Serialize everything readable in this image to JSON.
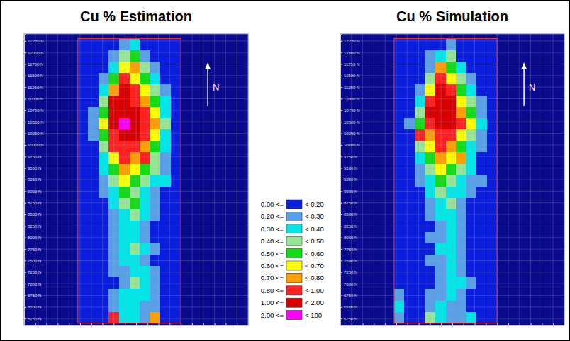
{
  "chart_data": [
    {
      "type": "heatmap",
      "title": "Cu % Estimation",
      "north_label": "N",
      "grid": true,
      "tick_labels": "y",
      "xlim": [
        3500,
        8500
      ],
      "xticks": [
        3500,
        3750,
        4000,
        4250,
        4500,
        4750,
        5000,
        5250,
        5500,
        5750,
        6000,
        6250,
        6500,
        6750,
        7000,
        7250,
        7500,
        7750,
        8000,
        8250,
        8500
      ],
      "ylim": [
        12400,
        6100
      ],
      "yticks": [
        {
          "value": 12250,
          "label": "12250 N"
        },
        {
          "value": 12000,
          "label": "12000 N"
        },
        {
          "value": 11750,
          "label": "11750 N"
        },
        {
          "value": 11500,
          "label": "11500 N"
        },
        {
          "value": 11250,
          "label": "11250 N"
        },
        {
          "value": 11000,
          "label": "11000 N"
        },
        {
          "value": 10750,
          "label": "10750 N"
        },
        {
          "value": 10500,
          "label": "10500 N"
        },
        {
          "value": 10250,
          "label": "10250 N"
        },
        {
          "value": 10000,
          "label": "10000 N"
        },
        {
          "value": 9750,
          "label": "9750 N"
        },
        {
          "value": 9500,
          "label": "9500 N"
        },
        {
          "value": 9250,
          "label": "9250 N"
        },
        {
          "value": 9000,
          "label": "9000 N"
        },
        {
          "value": 8750,
          "label": "8750 N"
        },
        {
          "value": 8500,
          "label": "8500 N"
        },
        {
          "value": 8250,
          "label": "8250 N"
        },
        {
          "value": 8000,
          "label": "8000 N"
        },
        {
          "value": 7750,
          "label": "7750 N"
        },
        {
          "value": 7500,
          "label": "7500 N"
        },
        {
          "value": 7250,
          "label": "7250 N"
        },
        {
          "value": 7000,
          "label": "7000 N"
        },
        {
          "value": 6750,
          "label": "6750 N"
        },
        {
          "value": 6500,
          "label": "6500 N"
        },
        {
          "value": 6250,
          "label": "6250 N"
        }
      ],
      "model_extent": {
        "x": [
          4700,
          7000
        ],
        "y": [
          12300,
          6150
        ]
      },
      "cell_x": [
        4815,
        5045,
        5275,
        5505,
        5735,
        5965,
        6195,
        6425,
        6655,
        6885
      ],
      "cell_y": [
        12177,
        11931,
        11685,
        11439,
        11193,
        10947,
        10701,
        10455,
        10209,
        9963,
        9717,
        9471,
        9225,
        8979,
        8733,
        8487,
        8241,
        7995,
        7749,
        7503,
        7257,
        7011,
        6765,
        6519,
        6273
      ],
      "cells": [
        [
          0.1,
          0.1,
          0.1,
          0.1,
          0.25,
          0.35,
          0.1,
          0.1,
          0.1,
          0.1
        ],
        [
          0.1,
          0.1,
          0.1,
          0.25,
          0.45,
          0.55,
          0.25,
          0.1,
          0.1,
          0.1
        ],
        [
          0.1,
          0.1,
          0.1,
          0.35,
          0.65,
          0.75,
          0.45,
          0.25,
          0.1,
          0.1
        ],
        [
          0.1,
          0.1,
          0.25,
          0.55,
          0.85,
          0.65,
          0.55,
          0.35,
          0.1,
          0.1
        ],
        [
          0.1,
          0.1,
          0.35,
          0.75,
          1.2,
          0.85,
          0.65,
          0.45,
          0.25,
          0.1
        ],
        [
          0.1,
          0.1,
          0.45,
          1.3,
          1.5,
          0.9,
          0.75,
          0.55,
          0.3,
          0.1
        ],
        [
          0.1,
          0.25,
          0.55,
          1.4,
          1.6,
          1.1,
          0.85,
          0.65,
          0.35,
          0.1
        ],
        [
          0.1,
          0.25,
          0.65,
          1.2,
          2.5,
          1.3,
          0.9,
          0.75,
          0.45,
          0.1
        ],
        [
          0.1,
          0.2,
          0.55,
          0.95,
          1.2,
          1.1,
          0.85,
          0.65,
          0.35,
          0.1
        ],
        [
          0.1,
          0.1,
          0.45,
          0.85,
          0.95,
          0.85,
          0.75,
          0.55,
          0.3,
          0.1
        ],
        [
          0.1,
          0.1,
          0.35,
          0.65,
          0.85,
          0.75,
          0.85,
          0.45,
          0.25,
          0.1
        ],
        [
          0.1,
          0.1,
          0.3,
          0.55,
          0.75,
          0.65,
          0.55,
          0.45,
          0.25,
          0.1
        ],
        [
          0.1,
          0.1,
          0.25,
          0.45,
          0.65,
          0.55,
          0.45,
          0.35,
          0.3,
          0.1
        ],
        [
          0.1,
          0.1,
          0.2,
          0.35,
          0.55,
          0.45,
          0.35,
          0.25,
          0.1,
          0.1
        ],
        [
          0.1,
          0.1,
          0.1,
          0.3,
          0.45,
          0.55,
          0.35,
          0.25,
          0.1,
          0.1
        ],
        [
          0.1,
          0.1,
          0.1,
          0.25,
          0.35,
          0.45,
          0.3,
          0.2,
          0.1,
          0.1
        ],
        [
          0.1,
          0.1,
          0.1,
          0.2,
          0.35,
          0.35,
          0.25,
          0.1,
          0.1,
          0.1
        ],
        [
          0.1,
          0.1,
          0.1,
          0.25,
          0.3,
          0.35,
          0.25,
          0.1,
          0.1,
          0.1
        ],
        [
          0.1,
          0.1,
          0.1,
          0.2,
          0.35,
          0.45,
          0.3,
          0.2,
          0.1,
          0.1
        ],
        [
          0.1,
          0.1,
          0.1,
          0.25,
          0.3,
          0.35,
          0.25,
          0.1,
          0.1,
          0.1
        ],
        [
          0.1,
          0.1,
          0.1,
          0.2,
          0.25,
          0.35,
          0.3,
          0.2,
          0.1,
          0.1
        ],
        [
          0.1,
          0.1,
          0.1,
          0.1,
          0.25,
          0.45,
          0.35,
          0.25,
          0.1,
          0.1
        ],
        [
          0.1,
          0.1,
          0.1,
          0.2,
          0.3,
          0.35,
          0.3,
          0.2,
          0.1,
          0.1
        ],
        [
          0.1,
          0.1,
          0.1,
          0.25,
          0.35,
          0.3,
          0.25,
          0.2,
          0.1,
          0.1
        ],
        [
          0.1,
          0.1,
          0.1,
          0.85,
          0.35,
          0.3,
          0.25,
          0.75,
          0.1,
          0.1
        ]
      ]
    },
    {
      "type": "heatmap",
      "title": "Cu % Simulation",
      "north_label": "N",
      "grid": true,
      "tick_labels": "y",
      "xlim": [
        3500,
        8500
      ],
      "xticks": [
        3500,
        3750,
        4000,
        4250,
        4500,
        4750,
        5000,
        5250,
        5500,
        5750,
        6000,
        6250,
        6500,
        6750,
        7000,
        7250,
        7500,
        7750,
        8000,
        8250,
        8500
      ],
      "ylim": [
        12400,
        6100
      ],
      "yticks": [
        {
          "value": 12250,
          "label": "12250 N"
        },
        {
          "value": 12000,
          "label": "12000 N"
        },
        {
          "value": 11750,
          "label": "11750 N"
        },
        {
          "value": 11500,
          "label": "11500 N"
        },
        {
          "value": 11250,
          "label": "11250 N"
        },
        {
          "value": 11000,
          "label": "11000 N"
        },
        {
          "value": 10750,
          "label": "10750 N"
        },
        {
          "value": 10500,
          "label": "10500 N"
        },
        {
          "value": 10250,
          "label": "10250 N"
        },
        {
          "value": 10000,
          "label": "10000 N"
        },
        {
          "value": 9750,
          "label": "9750 N"
        },
        {
          "value": 9500,
          "label": "9500 N"
        },
        {
          "value": 9250,
          "label": "9250 N"
        },
        {
          "value": 9000,
          "label": "9000 N"
        },
        {
          "value": 8750,
          "label": "8750 N"
        },
        {
          "value": 8500,
          "label": "8500 N"
        },
        {
          "value": 8250,
          "label": "8250 N"
        },
        {
          "value": 8000,
          "label": "8000 N"
        },
        {
          "value": 7750,
          "label": "7750 N"
        },
        {
          "value": 7500,
          "label": "7500 N"
        },
        {
          "value": 7250,
          "label": "7250 N"
        },
        {
          "value": 7000,
          "label": "7000 N"
        },
        {
          "value": 6750,
          "label": "6750 N"
        },
        {
          "value": 6500,
          "label": "6500 N"
        },
        {
          "value": 6250,
          "label": "6250 N"
        }
      ],
      "model_extent": {
        "x": [
          4700,
          7000
        ],
        "y": [
          12300,
          6150
        ]
      },
      "cell_x": [
        4815,
        5045,
        5275,
        5505,
        5735,
        5965,
        6195,
        6425,
        6655,
        6885
      ],
      "cell_y": [
        12177,
        11931,
        11685,
        11439,
        11193,
        10947,
        10701,
        10455,
        10209,
        9963,
        9717,
        9471,
        9225,
        8979,
        8733,
        8487,
        8241,
        7995,
        7749,
        7503,
        7257,
        7011,
        6765,
        6519,
        6273
      ],
      "cells": [
        [
          0.1,
          0.1,
          0.1,
          0.1,
          0.1,
          0.25,
          0.1,
          0.1,
          0.1,
          0.1
        ],
        [
          0.1,
          0.1,
          0.1,
          0.25,
          0.35,
          0.45,
          0.1,
          0.1,
          0.1,
          0.1
        ],
        [
          0.1,
          0.1,
          0.1,
          0.25,
          0.75,
          0.55,
          0.3,
          0.1,
          0.1,
          0.1
        ],
        [
          0.1,
          0.1,
          0.1,
          0.45,
          0.95,
          0.65,
          0.45,
          0.25,
          0.1,
          0.1
        ],
        [
          0.1,
          0.1,
          0.25,
          0.65,
          1.3,
          0.9,
          0.55,
          0.3,
          0.1,
          0.1
        ],
        [
          0.1,
          0.1,
          0.35,
          0.9,
          1.5,
          1.2,
          0.65,
          0.45,
          0.2,
          0.1
        ],
        [
          0.1,
          0.1,
          0.45,
          1.1,
          1.4,
          1.3,
          0.75,
          0.55,
          0.25,
          0.1
        ],
        [
          0.1,
          0.2,
          0.55,
          0.85,
          1.2,
          1.1,
          0.9,
          0.65,
          0.3,
          0.1
        ],
        [
          0.1,
          0.1,
          0.85,
          0.75,
          0.95,
          0.85,
          0.65,
          0.45,
          0.25,
          0.1
        ],
        [
          0.1,
          0.1,
          0.45,
          0.65,
          0.85,
          0.75,
          0.55,
          0.35,
          0.2,
          0.1
        ],
        [
          0.1,
          0.1,
          0.3,
          0.55,
          0.75,
          0.65,
          0.75,
          0.35,
          0.1,
          0.1
        ],
        [
          0.1,
          0.1,
          0.25,
          0.45,
          0.65,
          0.55,
          0.45,
          0.3,
          0.1,
          0.1
        ],
        [
          0.1,
          0.1,
          0.2,
          0.35,
          0.55,
          0.45,
          0.35,
          0.25,
          0.2,
          0.1
        ],
        [
          0.1,
          0.1,
          0.1,
          0.3,
          0.45,
          0.35,
          0.3,
          0.2,
          0.1,
          0.1
        ],
        [
          0.1,
          0.1,
          0.1,
          0.25,
          0.35,
          0.45,
          0.25,
          0.1,
          0.1,
          0.1
        ],
        [
          0.1,
          0.1,
          0.1,
          0.2,
          0.3,
          0.35,
          0.25,
          0.1,
          0.1,
          0.1
        ],
        [
          0.1,
          0.1,
          0.1,
          0.1,
          0.25,
          0.3,
          0.2,
          0.1,
          0.1,
          0.1
        ],
        [
          0.1,
          0.1,
          0.1,
          0.2,
          0.25,
          0.3,
          0.2,
          0.1,
          0.1,
          0.1
        ],
        [
          0.1,
          0.1,
          0.1,
          0.1,
          0.3,
          0.35,
          0.25,
          0.1,
          0.1,
          0.1
        ],
        [
          0.1,
          0.1,
          0.1,
          0.2,
          0.25,
          0.3,
          0.2,
          0.1,
          0.1,
          0.1
        ],
        [
          0.1,
          0.1,
          0.1,
          0.1,
          0.2,
          0.3,
          0.25,
          0.1,
          0.1,
          0.1
        ],
        [
          0.1,
          0.1,
          0.1,
          0.1,
          0.25,
          0.35,
          0.3,
          0.2,
          0.1,
          0.1
        ],
        [
          0.25,
          0.1,
          0.1,
          0.2,
          0.25,
          0.3,
          0.25,
          0.1,
          0.1,
          0.1
        ],
        [
          0.3,
          0.1,
          0.1,
          0.2,
          0.3,
          0.25,
          0.2,
          0.1,
          0.1,
          0.1
        ],
        [
          0.25,
          0.1,
          0.1,
          0.45,
          0.3,
          0.25,
          0.2,
          0.3,
          0.1,
          0.1
        ]
      ]
    }
  ],
  "color_scale": {
    "bounds": [
      0,
      0.2,
      0.3,
      0.4,
      0.5,
      0.6,
      0.7,
      0.8,
      1,
      2,
      100
    ],
    "lower_labels": [
      "0.00 <=",
      "0.20 <=",
      "0.30 <=",
      "0.40 <=",
      "0.50 <=",
      "0.60 <=",
      "0.70 <=",
      "0.80 <=",
      "1.00 <=",
      "2.00 <="
    ],
    "upper_labels": [
      "< 0.20",
      "< 0.30",
      "< 0.40",
      "< 0.50",
      "< 0.60",
      "< 0.70",
      "< 0.80",
      "< 1.00",
      "< 2.00",
      "< 100"
    ],
    "colors": [
      "#0a1edc",
      "#5aa0e6",
      "#00e6e6",
      "#96e696",
      "#14dc14",
      "#ffff00",
      "#ffa000",
      "#ff2020",
      "#d80000",
      "#ff00ff"
    ]
  }
}
